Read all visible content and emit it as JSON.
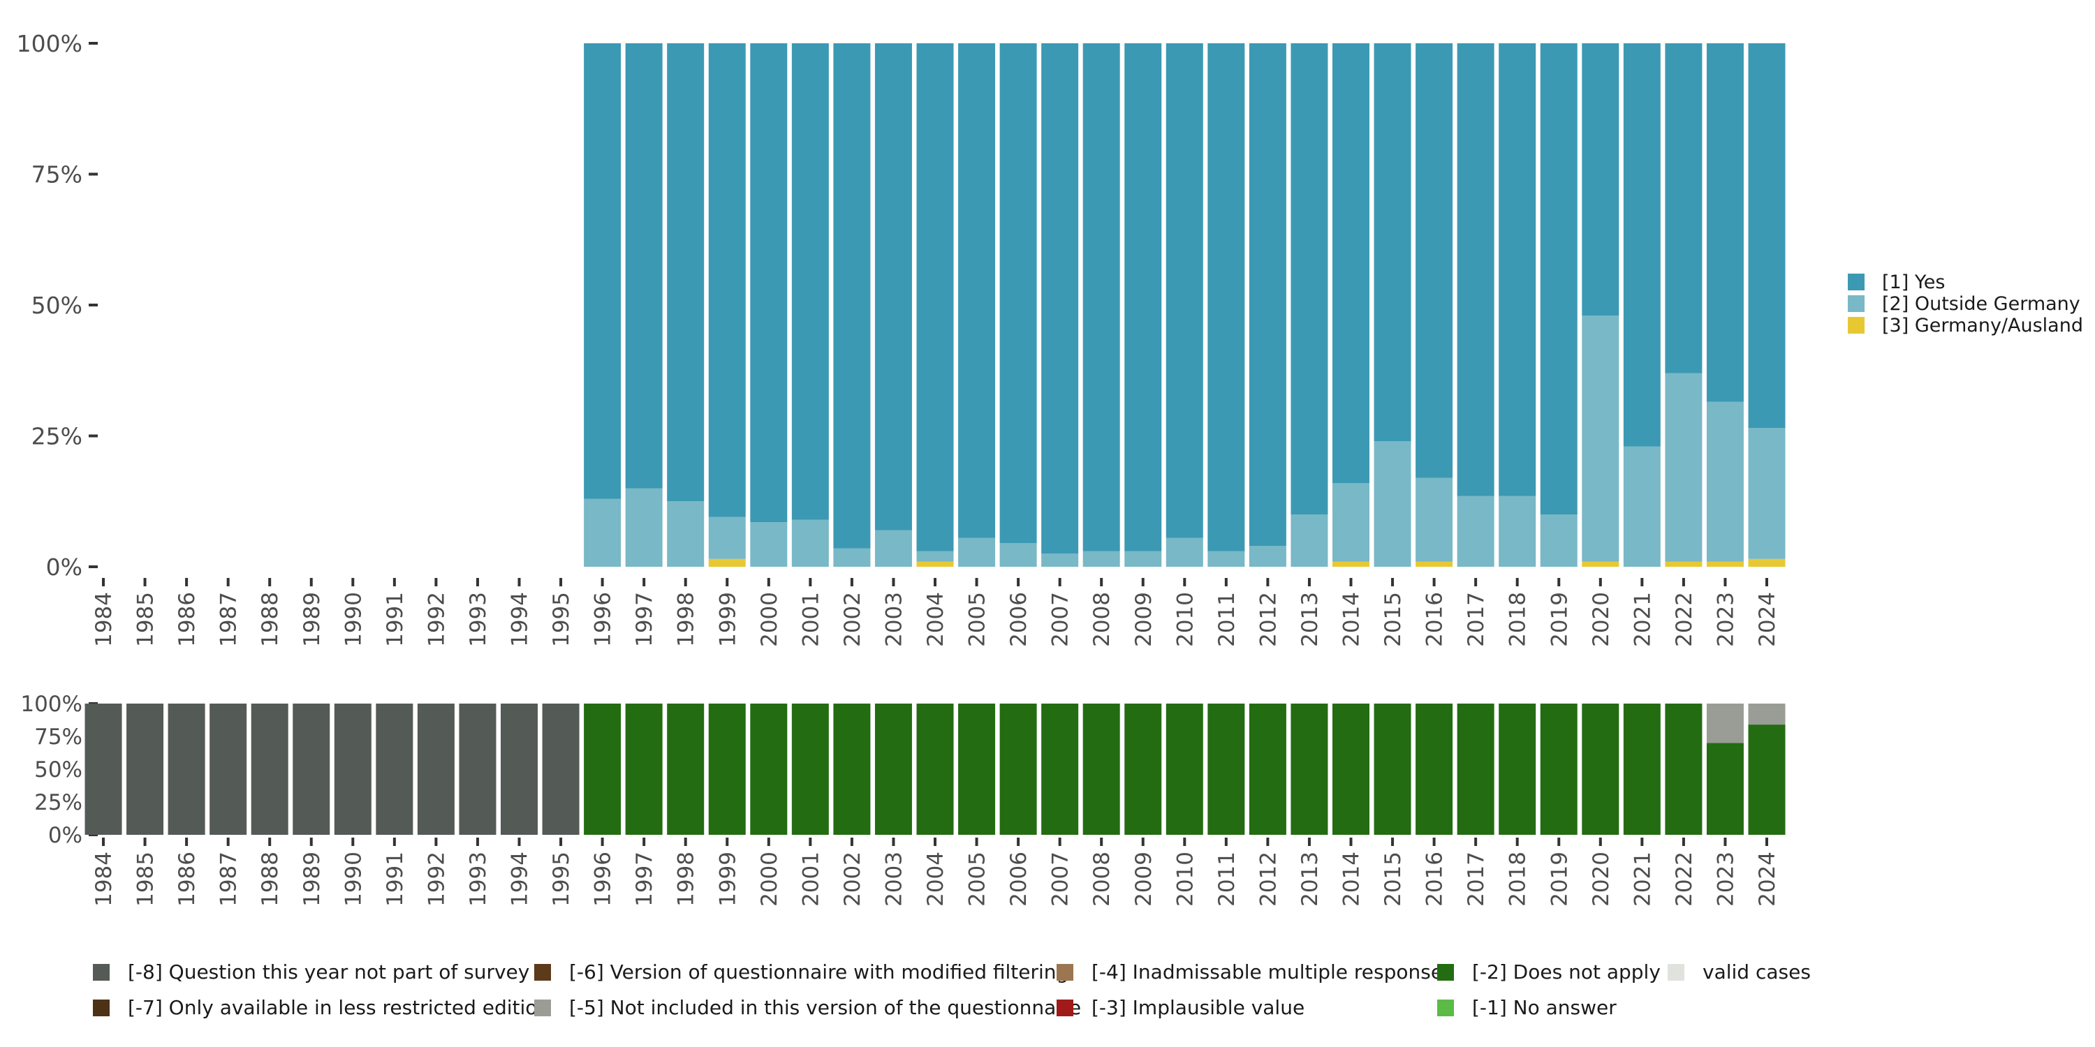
{
  "chart_data": [
    {
      "type": "bar",
      "stacked": true,
      "title": "",
      "xlabel": "",
      "ylabel": "",
      "ylim": [
        0,
        100
      ],
      "y_ticks": [
        "0%",
        "25%",
        "50%",
        "75%",
        "100%"
      ],
      "categories": [
        "1984",
        "1985",
        "1986",
        "1987",
        "1988",
        "1989",
        "1990",
        "1991",
        "1992",
        "1993",
        "1994",
        "1995",
        "1996",
        "1997",
        "1998",
        "1999",
        "2000",
        "2001",
        "2002",
        "2003",
        "2004",
        "2005",
        "2006",
        "2007",
        "2008",
        "2009",
        "2010",
        "2011",
        "2012",
        "2013",
        "2014",
        "2015",
        "2016",
        "2017",
        "2018",
        "2019",
        "2020",
        "2021",
        "2022",
        "2023",
        "2024"
      ],
      "legend_position": "right",
      "series": [
        {
          "name": "[3] Germany/Ausland",
          "color": "#E8C832",
          "values": [
            0,
            0,
            0,
            0,
            0,
            0,
            0,
            0,
            0,
            0,
            0,
            0,
            0,
            0,
            0,
            1.5,
            0,
            0,
            0,
            0,
            1,
            0,
            0,
            0,
            0,
            0,
            0,
            0,
            0,
            0,
            1,
            0,
            1,
            0,
            0,
            0,
            1,
            0,
            1,
            1,
            1.5
          ]
        },
        {
          "name": "[2] Outside Germany",
          "color": "#79B8C6",
          "values": [
            0,
            0,
            0,
            0,
            0,
            0,
            0,
            0,
            0,
            0,
            0,
            0,
            13,
            15,
            12.5,
            8,
            8.5,
            9,
            3.5,
            7,
            2,
            5.5,
            4.5,
            2.5,
            3,
            3,
            5.5,
            3,
            4,
            10,
            15,
            24,
            16,
            13.5,
            13.5,
            10,
            47,
            23,
            36,
            30.5,
            25
          ]
        },
        {
          "name": "[1] Yes",
          "color": "#3C99B3",
          "values": [
            0,
            0,
            0,
            0,
            0,
            0,
            0,
            0,
            0,
            0,
            0,
            0,
            87,
            85,
            87.5,
            90.5,
            91.5,
            91,
            96.5,
            93,
            97,
            94.5,
            95.5,
            97.5,
            97,
            97,
            94.5,
            97,
            96,
            90,
            84,
            76,
            83,
            86.5,
            86.5,
            90,
            52,
            77,
            63,
            68.5,
            73.5
          ]
        }
      ]
    },
    {
      "type": "bar",
      "stacked": true,
      "title": "",
      "xlabel": "",
      "ylabel": "",
      "ylim": [
        0,
        100
      ],
      "y_ticks": [
        "0%",
        "25%",
        "50%",
        "75%",
        "100%"
      ],
      "categories": [
        "1984",
        "1985",
        "1986",
        "1987",
        "1988",
        "1989",
        "1990",
        "1991",
        "1992",
        "1993",
        "1994",
        "1995",
        "1996",
        "1997",
        "1998",
        "1999",
        "2000",
        "2001",
        "2002",
        "2003",
        "2004",
        "2005",
        "2006",
        "2007",
        "2008",
        "2009",
        "2010",
        "2011",
        "2012",
        "2013",
        "2014",
        "2015",
        "2016",
        "2017",
        "2018",
        "2019",
        "2020",
        "2021",
        "2022",
        "2023",
        "2024"
      ],
      "legend_position": "bottom",
      "series": [
        {
          "name": "[-2] Does not apply",
          "color": "#236C12",
          "values": [
            0,
            0,
            0,
            0,
            0,
            0,
            0,
            0,
            0,
            0,
            0,
            0,
            100,
            100,
            100,
            100,
            100,
            100,
            100,
            100,
            100,
            100,
            100,
            100,
            100,
            100,
            100,
            100,
            100,
            100,
            100,
            100,
            100,
            100,
            100,
            100,
            100,
            100,
            100,
            70,
            84
          ]
        },
        {
          "name": "[-5] Not included in this version of the questionnaire",
          "color": "#9A9C96",
          "values": [
            0,
            0,
            0,
            0,
            0,
            0,
            0,
            0,
            0,
            0,
            0,
            0,
            0,
            0,
            0,
            0,
            0,
            0,
            0,
            0,
            0,
            0,
            0,
            0,
            0,
            0,
            0,
            0,
            0,
            0,
            0,
            0,
            0,
            0,
            0,
            0,
            0,
            0,
            0,
            30,
            16
          ]
        },
        {
          "name": "[-8] Question this year not part of survey",
          "color": "#545A55",
          "values": [
            100,
            100,
            100,
            100,
            100,
            100,
            100,
            100,
            100,
            100,
            100,
            100,
            0,
            0,
            0,
            0,
            0,
            0,
            0,
            0,
            0,
            0,
            0,
            0,
            0,
            0,
            0,
            0,
            0,
            0,
            0,
            0,
            0,
            0,
            0,
            0,
            0,
            0,
            0,
            0,
            0
          ]
        }
      ],
      "legend_items": [
        {
          "label": "[-8] Question this year not part of survey",
          "color": "#545A55"
        },
        {
          "label": "[-7] Only available in less restricted edition",
          "color": "#4E3216"
        },
        {
          "label": "[-6] Version of questionnaire with modified filtering",
          "color": "#5C3A1A"
        },
        {
          "label": "[-5] Not included in this version of the questionnaire",
          "color": "#9A9C96"
        },
        {
          "label": "[-4] Inadmissable multiple response",
          "color": "#9C7650"
        },
        {
          "label": "[-3] Implausible value",
          "color": "#A01A1A"
        },
        {
          "label": "[-2] Does not apply",
          "color": "#236C12"
        },
        {
          "label": "[-1] No answer",
          "color": "#5BBB46"
        },
        {
          "label": "valid cases",
          "color": "#E0E2DE"
        }
      ]
    }
  ]
}
